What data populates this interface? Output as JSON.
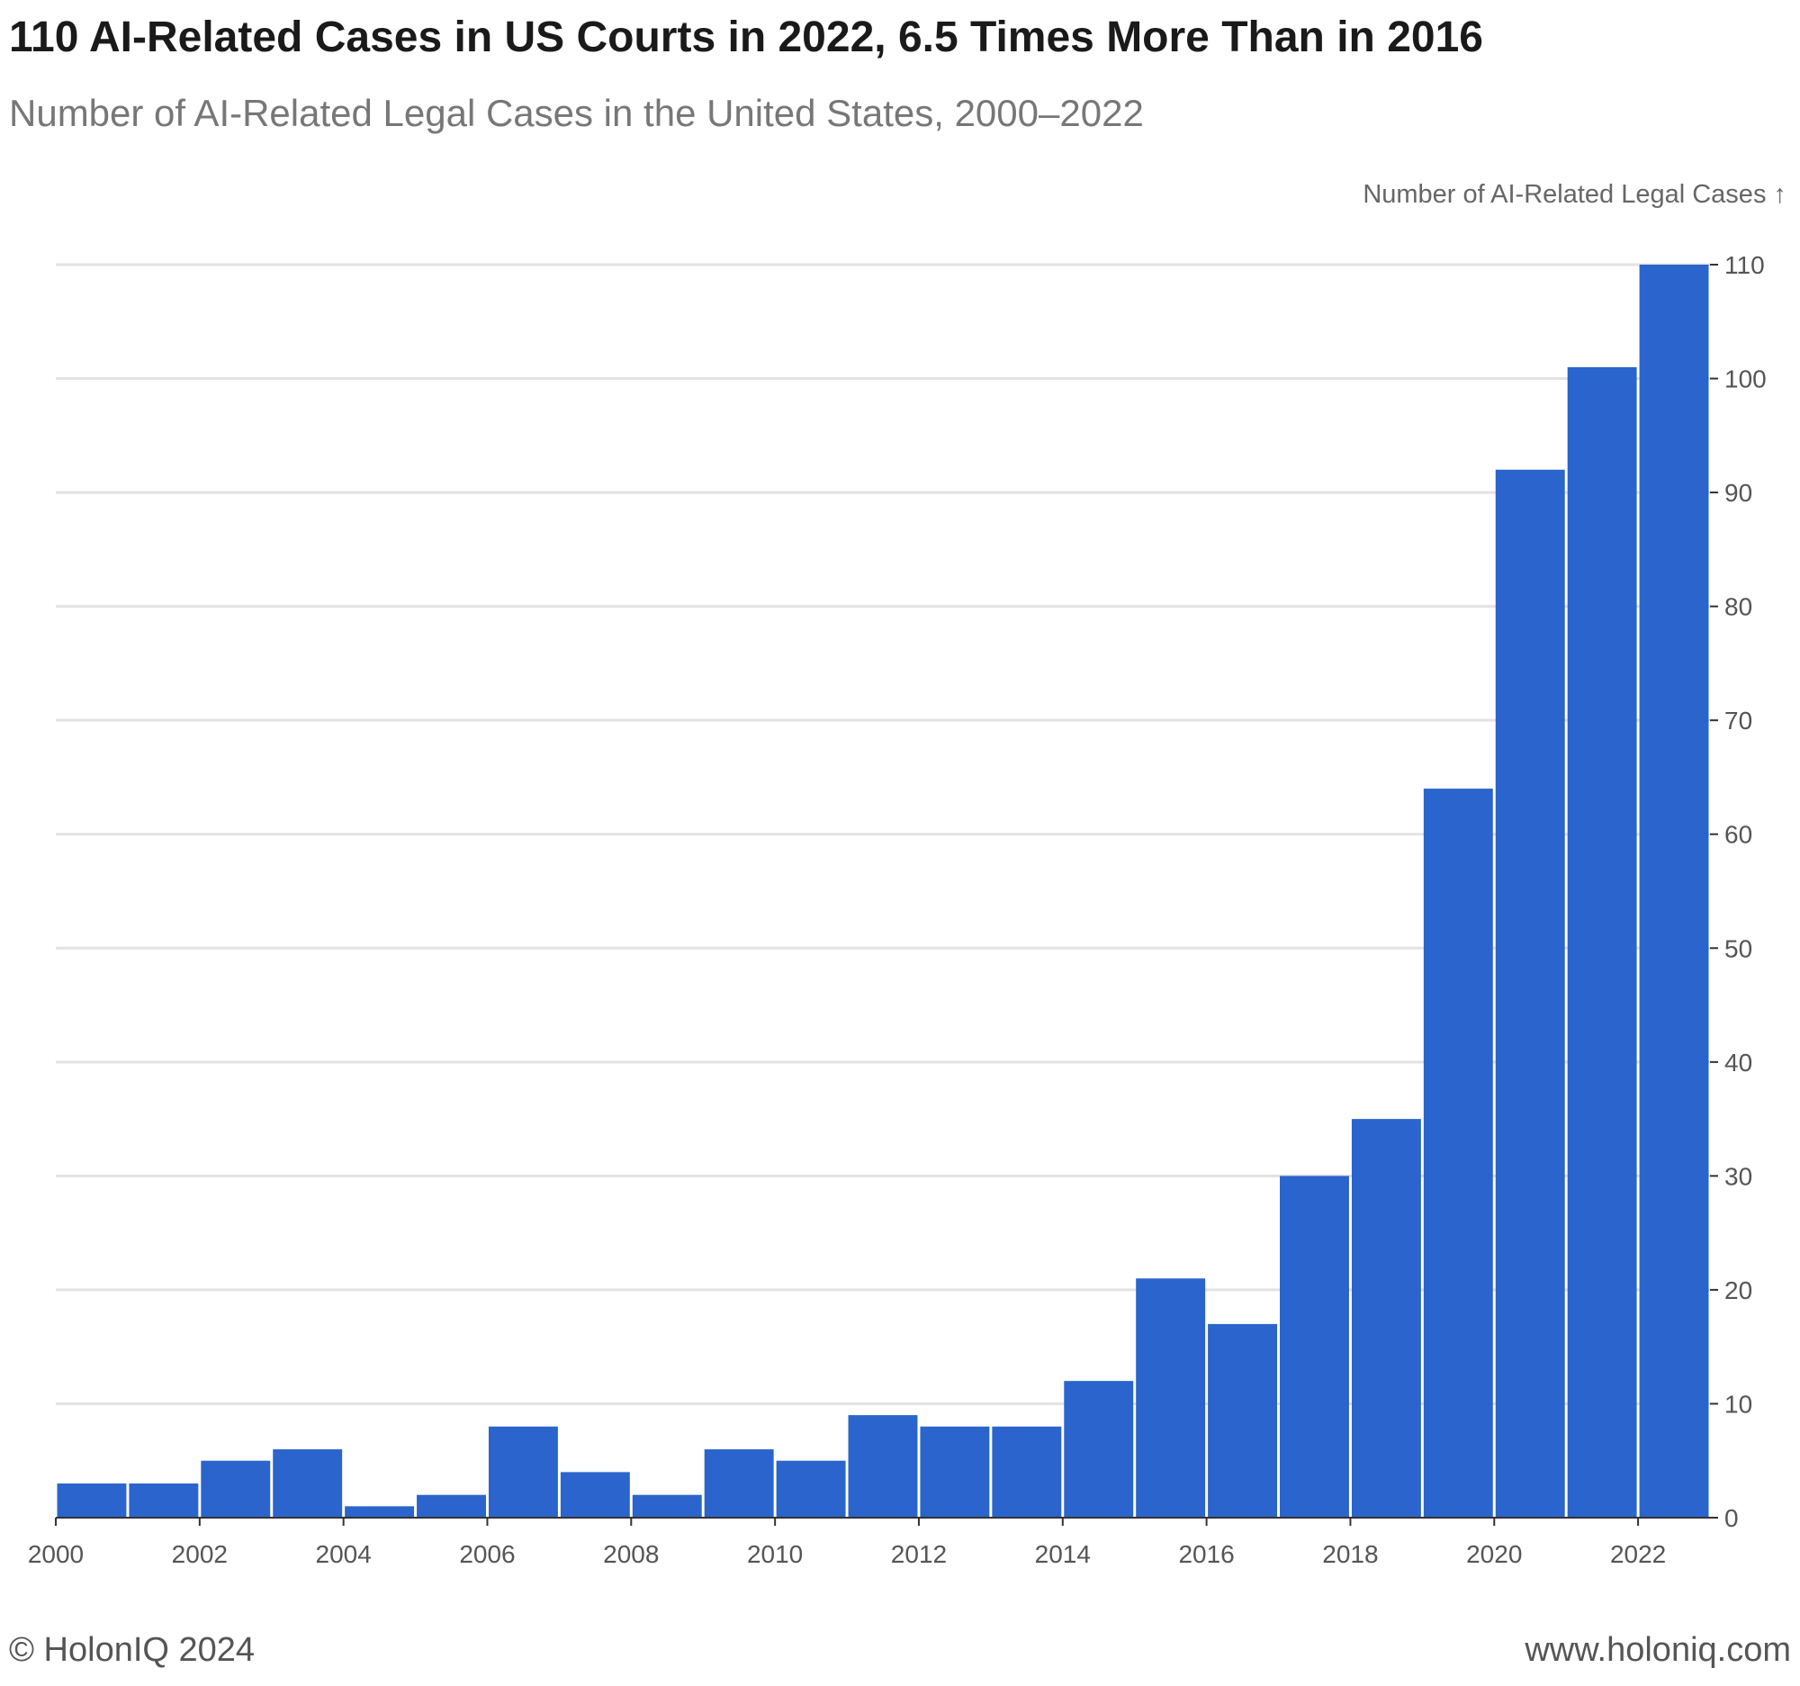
{
  "header": {
    "title": "110 AI-Related Cases in US Courts in 2022, 6.5 Times More Than in 2016",
    "subtitle": "Number of AI-Related Legal Cases in the United States, 2000–2022"
  },
  "footer": {
    "copyright": "© HolonIQ 2024",
    "website": "www.holoniq.com"
  },
  "colors": {
    "bar": "#2a64cc",
    "grid": "#e3e3e3",
    "axis": "#333333"
  },
  "chart_data": {
    "type": "bar",
    "title": "110 AI-Related Cases in US Courts in 2022, 6.5 Times More Than in 2016",
    "subtitle": "Number of AI-Related Legal Cases in the United States, 2000–2022",
    "ylabel": "Number of AI-Related Legal Cases ↑",
    "xlabel": "",
    "categories": [
      "2000",
      "2001",
      "2002",
      "2003",
      "2004",
      "2005",
      "2006",
      "2007",
      "2008",
      "2009",
      "2010",
      "2011",
      "2012",
      "2013",
      "2014",
      "2015",
      "2016",
      "2017",
      "2018",
      "2019",
      "2020",
      "2021",
      "2022"
    ],
    "values": [
      3,
      3,
      5,
      6,
      1,
      2,
      8,
      4,
      2,
      6,
      5,
      9,
      8,
      8,
      12,
      21,
      17,
      30,
      35,
      64,
      92,
      101,
      110
    ],
    "x_ticks": [
      "2000",
      "2002",
      "2004",
      "2006",
      "2008",
      "2010",
      "2012",
      "2014",
      "2016",
      "2018",
      "2020",
      "2022"
    ],
    "y_ticks": [
      0,
      10,
      20,
      30,
      40,
      50,
      60,
      70,
      80,
      90,
      100,
      110
    ],
    "ylim": [
      0,
      110
    ],
    "y_axis_side": "right",
    "grid": true,
    "legend": "none"
  }
}
